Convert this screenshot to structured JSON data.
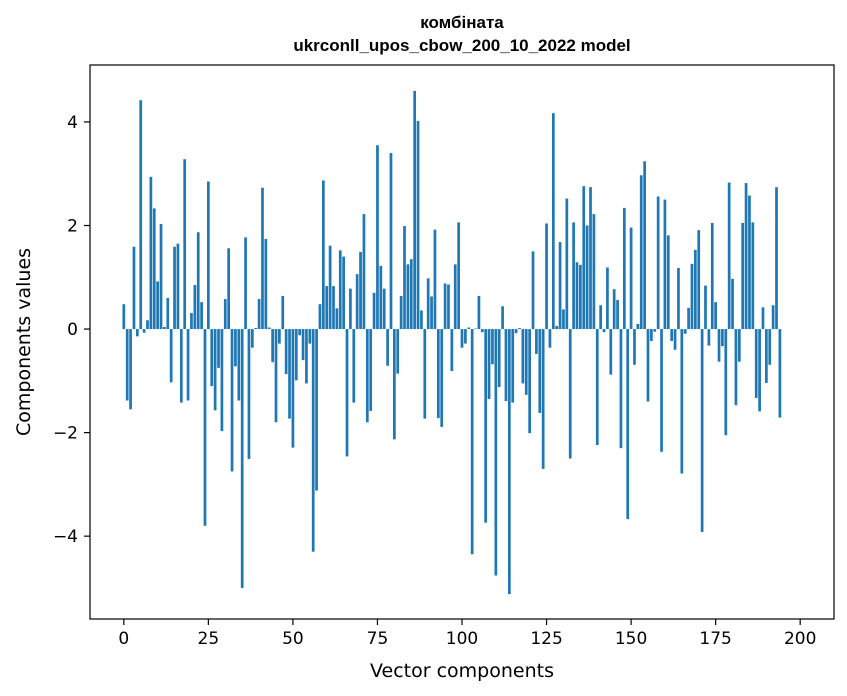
{
  "chart_data": {
    "type": "bar",
    "title": "комбіната",
    "subtitle": "ukrconll_upos_cbow_200_10_2022 model",
    "xlabel": "Vector components",
    "ylabel": "Components values",
    "xlim": [
      -10,
      210
    ],
    "ylim": [
      -5.6,
      5.1
    ],
    "xticks": [
      0,
      25,
      50,
      75,
      100,
      125,
      150,
      175,
      200
    ],
    "yticks": [
      -4,
      -2,
      0,
      2,
      4
    ],
    "bar_color": "#1f77b4",
    "values": [
      0.48,
      -1.38,
      -1.55,
      1.59,
      -0.14,
      4.42,
      -0.07,
      0.17,
      2.94,
      2.33,
      0.92,
      2.03,
      0.04,
      0.6,
      -1.03,
      1.59,
      1.65,
      -1.42,
      3.28,
      -1.38,
      0.31,
      0.85,
      1.87,
      0.52,
      -3.8,
      2.85,
      -1.1,
      -1.57,
      -0.75,
      -1.97,
      0.58,
      1.56,
      -2.75,
      -0.72,
      -1.38,
      -5.0,
      1.77,
      -2.51,
      -0.36,
      0.02,
      0.58,
      2.73,
      1.74,
      0.03,
      -0.64,
      -1.8,
      -0.28,
      0.64,
      -0.87,
      -1.73,
      -2.29,
      -0.99,
      -0.12,
      -0.6,
      -1.05,
      -0.28,
      -4.3,
      -3.12,
      0.48,
      2.87,
      0.83,
      1.61,
      0.83,
      0.4,
      1.52,
      1.4,
      -2.46,
      0.78,
      -1.42,
      1.06,
      1.49,
      2.22,
      -1.8,
      -1.58,
      0.7,
      3.55,
      1.22,
      0.78,
      -0.71,
      3.4,
      -2.13,
      -0.86,
      0.64,
      1.99,
      1.25,
      1.35,
      4.6,
      4.02,
      0.36,
      -1.73,
      0.98,
      0.63,
      1.92,
      -1.72,
      -1.89,
      0.88,
      0.86,
      -0.81,
      1.25,
      2.06,
      -0.36,
      -0.28,
      0.03,
      -4.35,
      0.01,
      0.64,
      -0.06,
      -3.74,
      -1.35,
      -0.68,
      -4.76,
      -1.12,
      0.44,
      -1.39,
      -5.12,
      -1.42,
      -0.08,
      0.02,
      -1.05,
      -1.27,
      -2.01,
      1.5,
      -0.48,
      -1.62,
      -2.7,
      2.04,
      -0.36,
      4.17,
      0.06,
      1.68,
      0.38,
      2.52,
      -2.5,
      2.06,
      1.29,
      1.24,
      2.76,
      2.0,
      2.74,
      2.22,
      -2.24,
      0.46,
      -0.06,
      1.19,
      -0.88,
      0.77,
      0.56,
      -2.3,
      2.34,
      -3.67,
      1.96,
      -0.69,
      0.1,
      2.97,
      3.24,
      -1.4,
      -0.23,
      -0.05,
      2.56,
      -2.37,
      2.5,
      1.81,
      -0.23,
      -0.4,
      1.18,
      -2.79,
      -0.09,
      0.41,
      1.26,
      1.53,
      1.91,
      -3.92,
      0.84,
      -0.32,
      2.05,
      0.52,
      -0.63,
      -0.33,
      -2.05,
      2.83,
      0.97,
      -1.47,
      -0.63,
      2.05,
      2.82,
      2.58,
      2.06,
      -1.33,
      -1.59,
      0.42,
      -1.04,
      -0.69,
      0.46,
      2.74,
      -1.71
    ]
  }
}
